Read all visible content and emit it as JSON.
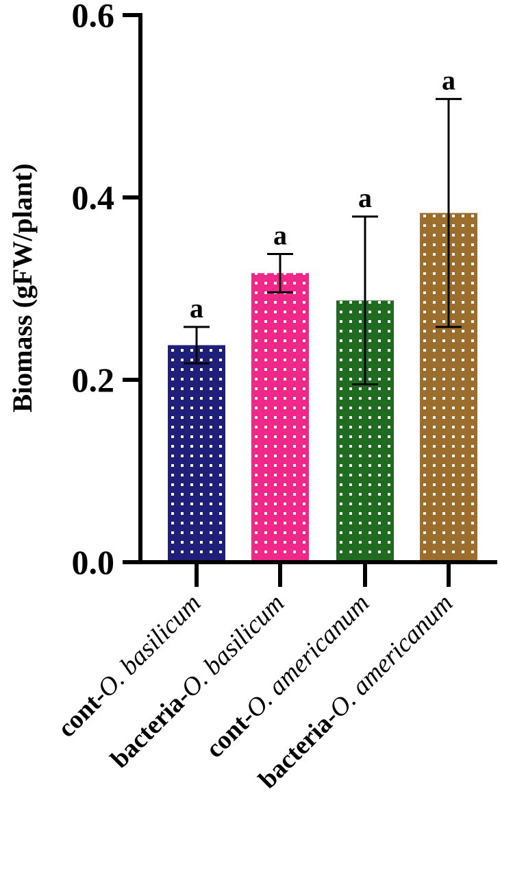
{
  "chart_data": {
    "type": "bar",
    "title": "",
    "ylabel": "Biomass (gFW/plant)",
    "xlabel": "",
    "ylim": [
      0,
      0.6
    ],
    "yticks": [
      "0.0",
      "0.2",
      "0.4",
      "0.6"
    ],
    "categories": [
      {
        "prefix": "cont-",
        "species": "O. basilicum"
      },
      {
        "prefix": "bacteria-",
        "species": "O. basilicum"
      },
      {
        "prefix": "cont-",
        "species": "O. americanum"
      },
      {
        "prefix": "bacteria-",
        "species": "O. americanum"
      }
    ],
    "values": [
      0.238,
      0.317,
      0.287,
      0.383
    ],
    "errors": [
      0.02,
      0.021,
      0.092,
      0.125
    ],
    "significance": [
      "a",
      "a",
      "a",
      "a"
    ],
    "colors": [
      "#1f1f7a",
      "#f0288a",
      "#1f6b1f",
      "#9b6e2d"
    ],
    "pattern": "white dots",
    "grid": false,
    "legend": "none"
  }
}
